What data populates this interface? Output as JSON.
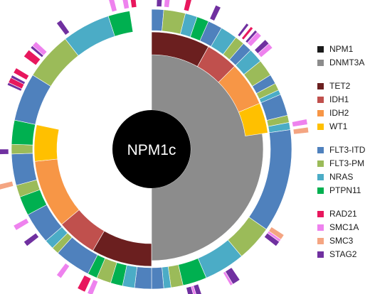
{
  "chart_data": {
    "type": "sunburst",
    "title": "",
    "center_label": "NPM1c",
    "legend": {
      "placement": "right",
      "groups": [
        [
          {
            "gene": "NPM1",
            "color": "#1a1a1a"
          },
          {
            "gene": "DNMT3A",
            "color": "#8c8c8c"
          }
        ],
        [
          {
            "gene": "TET2",
            "color": "#6b1f1f"
          },
          {
            "gene": "IDH1",
            "color": "#c0504d"
          },
          {
            "gene": "IDH2",
            "color": "#f79646"
          },
          {
            "gene": "WT1",
            "color": "#ffc000"
          }
        ],
        [
          {
            "gene": "FLT3-ITD",
            "color": "#4f81bd"
          },
          {
            "gene": "FLT3-PM",
            "color": "#9bbb59"
          },
          {
            "gene": "NRAS",
            "color": "#4bacc6"
          },
          {
            "gene": "PTPN11",
            "color": "#00b050"
          }
        ],
        [
          {
            "gene": "RAD21",
            "color": "#e8175d"
          },
          {
            "gene": "SMC1A",
            "color": "#ee82ee"
          },
          {
            "gene": "SMC3",
            "color": "#f4a582"
          },
          {
            "gene": "STAG2",
            "color": "#7030a0"
          }
        ]
      ]
    },
    "rings": [
      {
        "level": 1,
        "segments": [
          {
            "gene": "DNMT3A",
            "start_deg": 0,
            "end_deg": 180
          },
          {
            "gene": "none",
            "start_deg": 180,
            "end_deg": 360
          }
        ]
      },
      {
        "level": 2,
        "segments": [
          {
            "gene": "TET2",
            "start_deg": 0,
            "end_deg": 29
          },
          {
            "gene": "IDH1",
            "start_deg": 29,
            "end_deg": 45
          },
          {
            "gene": "IDH2",
            "start_deg": 45,
            "end_deg": 67
          },
          {
            "gene": "WT1",
            "start_deg": 67,
            "end_deg": 82
          },
          {
            "gene": "none",
            "start_deg": 82,
            "end_deg": 180
          },
          {
            "gene": "TET2",
            "start_deg": 180,
            "end_deg": 210
          },
          {
            "gene": "IDH1",
            "start_deg": 210,
            "end_deg": 230
          },
          {
            "gene": "IDH2",
            "start_deg": 230,
            "end_deg": 264
          },
          {
            "gene": "WT1",
            "start_deg": 264,
            "end_deg": 282
          },
          {
            "gene": "none",
            "start_deg": 282,
            "end_deg": 360
          }
        ]
      },
      {
        "level": 3,
        "segments": [
          {
            "gene": "FLT3-ITD",
            "start_deg": 0,
            "end_deg": 5
          },
          {
            "gene": "FLT3-PM",
            "start_deg": 5,
            "end_deg": 14
          },
          {
            "gene": "NRAS",
            "start_deg": 14,
            "end_deg": 19
          },
          {
            "gene": "PTPN11",
            "start_deg": 19,
            "end_deg": 24
          },
          {
            "gene": "FLT3-ITD",
            "start_deg": 24,
            "end_deg": 30
          },
          {
            "gene": "NRAS",
            "start_deg": 30,
            "end_deg": 37
          },
          {
            "gene": "FLT3-PM",
            "start_deg": 37,
            "end_deg": 41
          },
          {
            "gene": "FLT3-ITD",
            "start_deg": 41,
            "end_deg": 45
          },
          {
            "gene": "NRAS",
            "start_deg": 45,
            "end_deg": 51
          },
          {
            "gene": "FLT3-PM",
            "start_deg": 51,
            "end_deg": 58
          },
          {
            "gene": "FLT3-ITD",
            "start_deg": 58,
            "end_deg": 62
          },
          {
            "gene": "FLT3-PM",
            "start_deg": 62,
            "end_deg": 65
          },
          {
            "gene": "NRAS",
            "start_deg": 65,
            "end_deg": 67
          },
          {
            "gene": "FLT3-ITD",
            "start_deg": 67,
            "end_deg": 76
          },
          {
            "gene": "FLT3-PM",
            "start_deg": 76,
            "end_deg": 79
          },
          {
            "gene": "NRAS",
            "start_deg": 79,
            "end_deg": 82
          },
          {
            "gene": "FLT3-ITD",
            "start_deg": 82,
            "end_deg": 125
          },
          {
            "gene": "FLT3-PM",
            "start_deg": 125,
            "end_deg": 140
          },
          {
            "gene": "NRAS",
            "start_deg": 140,
            "end_deg": 157
          },
          {
            "gene": "PTPN11",
            "start_deg": 157,
            "end_deg": 167
          },
          {
            "gene": "FLT3-PM",
            "start_deg": 167,
            "end_deg": 172
          },
          {
            "gene": "NRAS",
            "start_deg": 172,
            "end_deg": 175
          },
          {
            "gene": "FLT3-ITD",
            "start_deg": 175,
            "end_deg": 180
          },
          {
            "gene": "FLT3-ITD",
            "start_deg": 180,
            "end_deg": 187
          },
          {
            "gene": "NRAS",
            "start_deg": 187,
            "end_deg": 192
          },
          {
            "gene": "PTPN11",
            "start_deg": 192,
            "end_deg": 197
          },
          {
            "gene": "FLT3-PM",
            "start_deg": 197,
            "end_deg": 203
          },
          {
            "gene": "PTPN11",
            "start_deg": 203,
            "end_deg": 207
          },
          {
            "gene": "FLT3-ITD",
            "start_deg": 207,
            "end_deg": 222
          },
          {
            "gene": "FLT3-PM",
            "start_deg": 222,
            "end_deg": 225
          },
          {
            "gene": "NRAS",
            "start_deg": 225,
            "end_deg": 229
          },
          {
            "gene": "FLT3-ITD",
            "start_deg": 229,
            "end_deg": 242
          },
          {
            "gene": "PTPN11",
            "start_deg": 242,
            "end_deg": 250
          },
          {
            "gene": "FLT3-PM",
            "start_deg": 250,
            "end_deg": 255
          },
          {
            "gene": "FLT3-ITD",
            "start_deg": 255,
            "end_deg": 268
          },
          {
            "gene": "FLT3-PM",
            "start_deg": 268,
            "end_deg": 272
          },
          {
            "gene": "PTPN11",
            "start_deg": 272,
            "end_deg": 282
          },
          {
            "gene": "FLT3-ITD",
            "start_deg": 282,
            "end_deg": 302
          },
          {
            "gene": "FLT3-PM",
            "start_deg": 302,
            "end_deg": 322
          },
          {
            "gene": "NRAS",
            "start_deg": 322,
            "end_deg": 342
          },
          {
            "gene": "PTPN11",
            "start_deg": 342,
            "end_deg": 351
          },
          {
            "gene": "none",
            "start_deg": 351,
            "end_deg": 360
          }
        ]
      },
      {
        "level": 4,
        "segments": [
          {
            "gene": "STAG2",
            "start_deg": 2,
            "end_deg": 4
          },
          {
            "gene": "SMC1A",
            "start_deg": 5,
            "end_deg": 7
          },
          {
            "gene": "RAD21",
            "start_deg": 13,
            "end_deg": 15
          },
          {
            "gene": "STAG2",
            "start_deg": 24,
            "end_deg": 26
          },
          {
            "gene": "STAG2",
            "start_deg": 37,
            "end_deg": 38
          },
          {
            "gene": "RAD21",
            "start_deg": 39,
            "end_deg": 40
          },
          {
            "gene": "STAG2",
            "start_deg": 41,
            "end_deg": 42
          },
          {
            "gene": "SMC1A",
            "start_deg": 42,
            "end_deg": 44
          },
          {
            "gene": "STAG2",
            "start_deg": 46,
            "end_deg": 48
          },
          {
            "gene": "SMC1A",
            "start_deg": 48,
            "end_deg": 50
          },
          {
            "gene": "SMC1A",
            "start_deg": 79,
            "end_deg": 81
          },
          {
            "gene": "SMC3",
            "start_deg": 82,
            "end_deg": 84
          },
          {
            "gene": "SMC3",
            "start_deg": 123,
            "end_deg": 125
          },
          {
            "gene": "SMC1A",
            "start_deg": 125,
            "end_deg": 126
          },
          {
            "gene": "STAG2",
            "start_deg": 126,
            "end_deg": 128
          },
          {
            "gene": "STAG2",
            "start_deg": 146,
            "end_deg": 149
          },
          {
            "gene": "SMC1A",
            "start_deg": 149,
            "end_deg": 150
          },
          {
            "gene": "STAG2",
            "start_deg": 161,
            "end_deg": 163
          },
          {
            "gene": "SMC1A",
            "start_deg": 163,
            "end_deg": 164
          },
          {
            "gene": "STAG2",
            "start_deg": 164,
            "end_deg": 166
          },
          {
            "gene": "SMC1A",
            "start_deg": 202,
            "end_deg": 204
          },
          {
            "gene": "RAD21",
            "start_deg": 205,
            "end_deg": 208
          },
          {
            "gene": "SMC1A",
            "start_deg": 215,
            "end_deg": 217
          },
          {
            "gene": "STAG2",
            "start_deg": 232,
            "end_deg": 234
          },
          {
            "gene": "SMC1A",
            "start_deg": 239,
            "end_deg": 241
          },
          {
            "gene": "SMC3",
            "start_deg": 255,
            "end_deg": 257
          },
          {
            "gene": "STAG2",
            "start_deg": 268,
            "end_deg": 270
          },
          {
            "gene": "STAG2",
            "start_deg": 294,
            "end_deg": 295
          },
          {
            "gene": "RAD21",
            "start_deg": 295,
            "end_deg": 297
          },
          {
            "gene": "STAG2",
            "start_deg": 297,
            "end_deg": 298
          },
          {
            "gene": "RAD21",
            "start_deg": 299,
            "end_deg": 301
          },
          {
            "gene": "RAD21",
            "start_deg": 306,
            "end_deg": 309
          },
          {
            "gene": "STAG2",
            "start_deg": 310,
            "end_deg": 311
          },
          {
            "gene": "SMC1A",
            "start_deg": 311,
            "end_deg": 313
          },
          {
            "gene": "STAG2",
            "start_deg": 323,
            "end_deg": 325
          },
          {
            "gene": "SMC1A",
            "start_deg": 344,
            "end_deg": 346
          },
          {
            "gene": "SMC1A",
            "start_deg": 349,
            "end_deg": 351
          },
          {
            "gene": "RAD21",
            "start_deg": 352,
            "end_deg": 354
          }
        ]
      }
    ]
  }
}
